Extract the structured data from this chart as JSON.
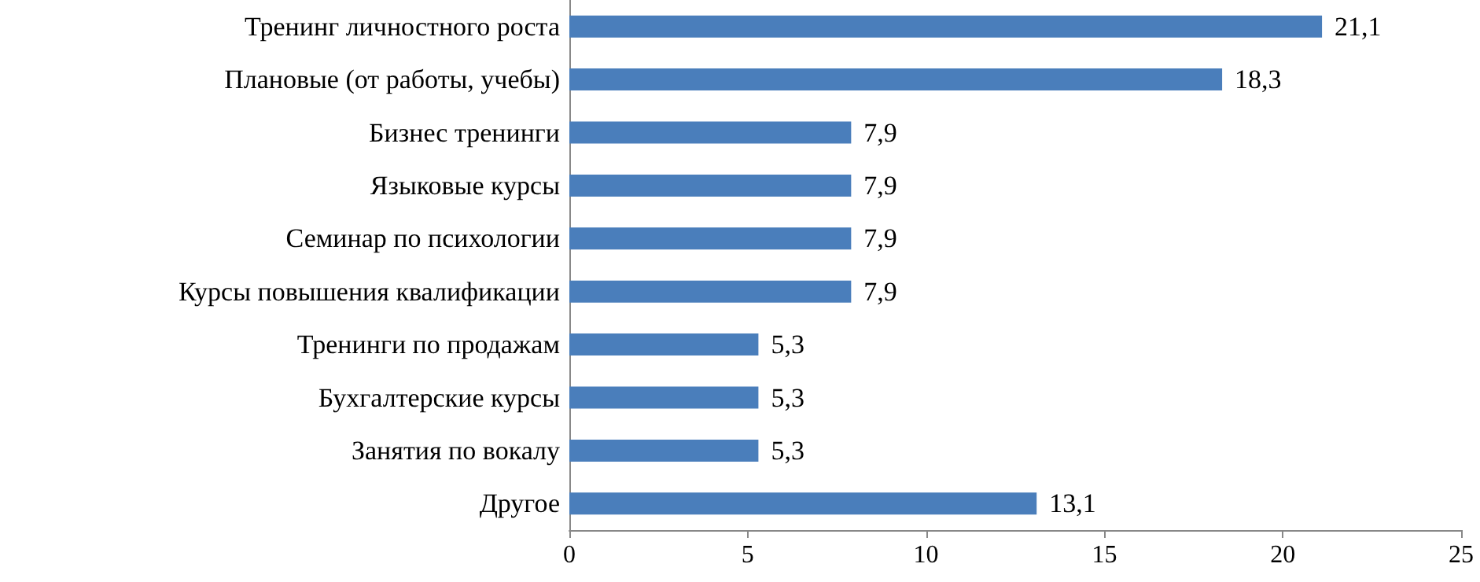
{
  "chart_data": {
    "type": "bar",
    "orientation": "horizontal",
    "categories": [
      "Тренинг личностного роста",
      "Плановые (от работы, учебы)",
      "Бизнес тренинги",
      "Языковые курсы",
      "Семинар по психологии",
      "Курсы повышения квалификации",
      "Тренинги по продажам",
      "Бухгалтерские курсы",
      "Занятия по вокалу",
      "Другое"
    ],
    "values": [
      21.1,
      18.3,
      7.9,
      7.9,
      7.9,
      7.9,
      5.3,
      5.3,
      5.3,
      13.1
    ],
    "value_labels": [
      "21,1",
      "18,3",
      "7,9",
      "7,9",
      "7,9",
      "7,9",
      "5,3",
      "5,3",
      "5,3",
      "13,1"
    ],
    "color": "#4a7ebb",
    "xlim": [
      0,
      25
    ],
    "xticks": [
      0,
      5,
      10,
      15,
      20,
      25
    ],
    "grid": false
  }
}
